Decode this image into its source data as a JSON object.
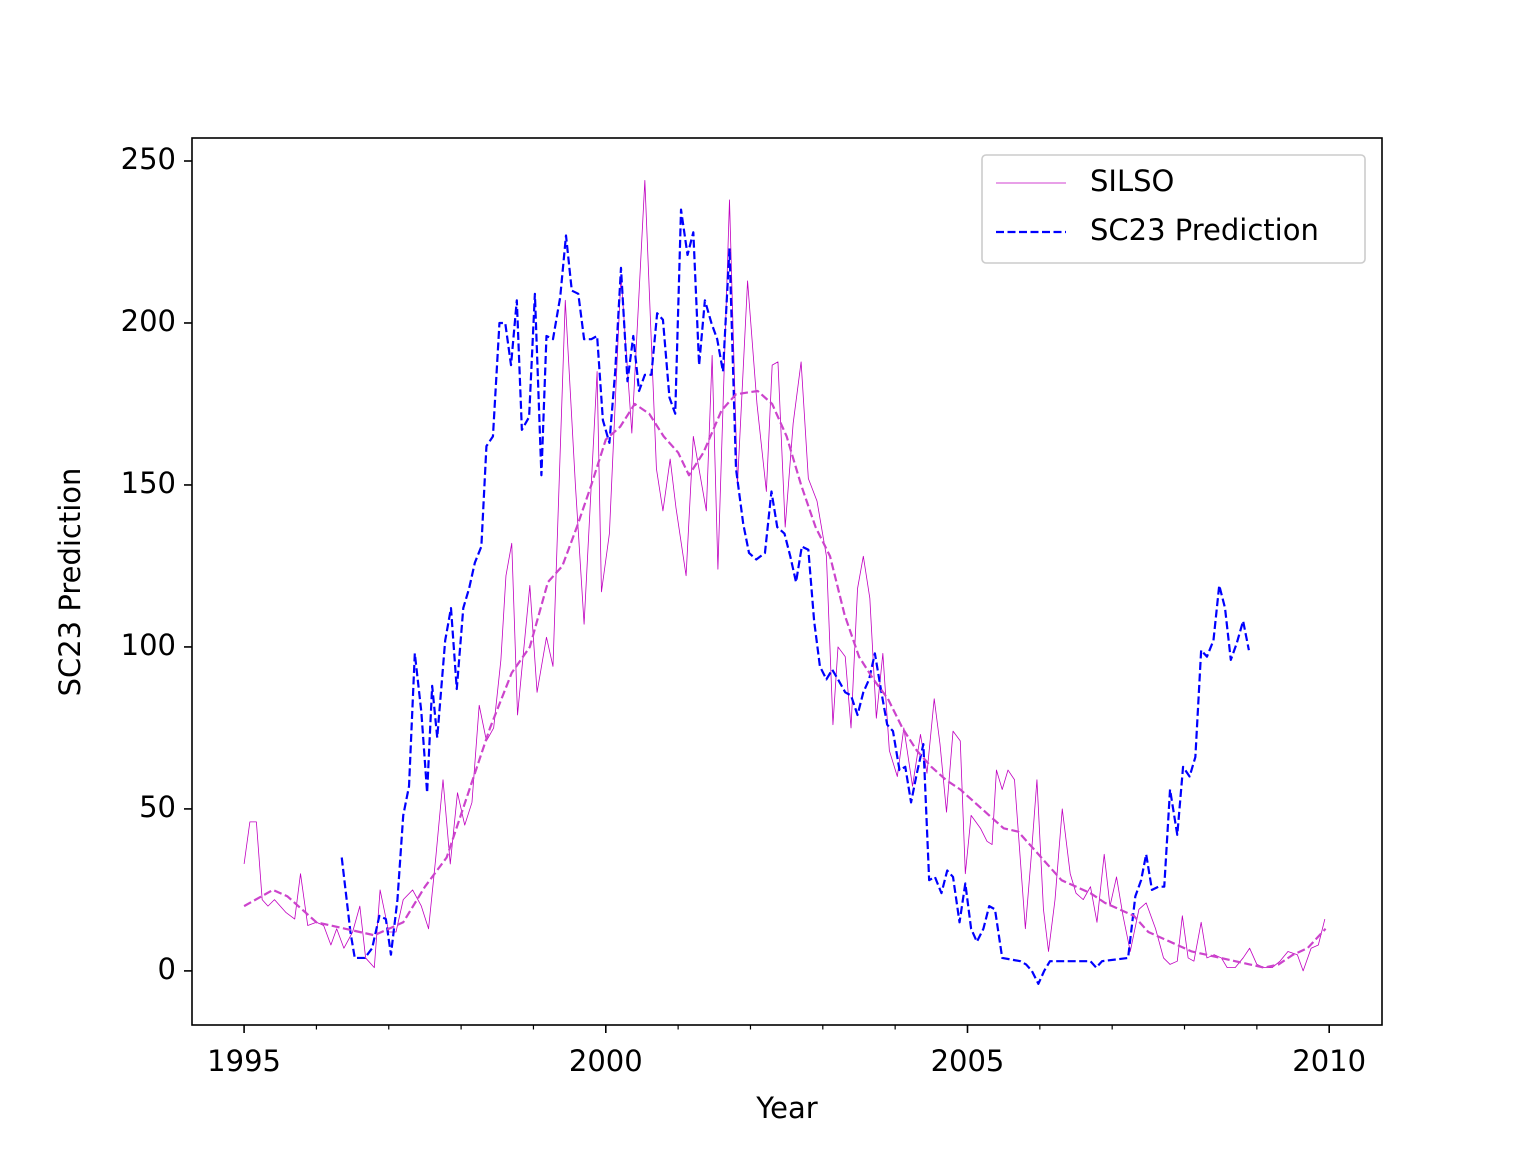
{
  "chart_data": {
    "type": "line",
    "xlabel": "Year",
    "ylabel": "SC23 Prediction",
    "xlim": [
      1994.28,
      2010.73
    ],
    "ylim": [
      -16.7,
      257.1
    ],
    "xticks": [
      1995,
      2000,
      2005,
      2010
    ],
    "xminorticks": [
      1996,
      1997,
      1998,
      1999,
      2001,
      2002,
      2003,
      2004,
      2006,
      2007,
      2008,
      2009
    ],
    "yticks": [
      0,
      50,
      100,
      150,
      200,
      250
    ],
    "legend": "upper right",
    "series": [
      {
        "name": "SILSO",
        "color": "#c000c0",
        "linestyle": "solid",
        "linewidth": 0.8,
        "x": [
          1995.0,
          1995.08,
          1995.17,
          1995.25,
          1995.33,
          1995.42,
          1995.58,
          1995.7,
          1995.78,
          1995.88,
          1996.0,
          1996.1,
          1996.2,
          1996.28,
          1996.38,
          1996.5,
          1996.6,
          1996.68,
          1996.8,
          1996.88,
          1997.0,
          1997.1,
          1997.2,
          1997.33,
          1997.45,
          1997.55,
          1997.65,
          1997.75,
          1997.85,
          1997.95,
          1998.05,
          1998.15,
          1998.25,
          1998.35,
          1998.45,
          1998.55,
          1998.62,
          1998.7,
          1998.78,
          1998.95,
          1999.05,
          1999.18,
          1999.27,
          1999.44,
          1999.58,
          1999.7,
          1999.88,
          1999.94,
          2000.05,
          2000.21,
          2000.36,
          2000.54,
          2000.7,
          2000.79,
          2000.89,
          2000.97,
          2001.11,
          2001.21,
          2001.39,
          2001.47,
          2001.55,
          2001.71,
          2001.82,
          2001.96,
          2002.09,
          2002.22,
          2002.3,
          2002.38,
          2002.48,
          2002.59,
          2002.7,
          2002.8,
          2002.92,
          2003.05,
          2003.14,
          2003.21,
          2003.31,
          2003.39,
          2003.48,
          2003.56,
          2003.65,
          2003.74,
          2003.83,
          2003.92,
          2004.03,
          2004.12,
          2004.24,
          2004.35,
          2004.44,
          2004.54,
          2004.62,
          2004.71,
          2004.8,
          2004.9,
          2004.97,
          2005.05,
          2005.18,
          2005.27,
          2005.34,
          2005.4,
          2005.48,
          2005.56,
          2005.65,
          2005.8,
          2005.88,
          2005.96,
          2006.05,
          2006.12,
          2006.21,
          2006.31,
          2006.42,
          2006.5,
          2006.6,
          2006.7,
          2006.79,
          2006.89,
          2006.97,
          2007.06,
          2007.15,
          2007.25,
          2007.37,
          2007.47,
          2007.6,
          2007.71,
          2007.8,
          2007.9,
          2007.97,
          2008.05,
          2008.13,
          2008.23,
          2008.31,
          2008.41,
          2008.51,
          2008.59,
          2008.7,
          2008.81,
          2008.9,
          2009.0,
          2009.1,
          2009.21,
          2009.32,
          2009.43,
          2009.56,
          2009.64,
          2009.75,
          2009.85,
          2009.94
        ],
        "values": [
          33,
          46,
          46,
          22,
          20,
          22,
          18,
          16,
          30,
          14,
          15,
          14,
          8,
          13,
          7,
          12,
          20,
          4,
          1,
          25,
          12,
          12,
          22,
          25,
          20,
          13,
          35,
          59,
          33,
          55,
          45,
          52,
          82,
          71,
          75,
          96,
          122,
          132,
          79,
          119,
          86,
          103,
          94,
          207,
          150,
          107,
          185,
          117,
          135,
          215,
          166,
          244,
          155,
          142,
          158,
          143,
          122,
          165,
          142,
          190,
          124,
          238,
          150,
          213,
          175,
          148,
          187,
          188,
          137,
          169,
          188,
          152,
          145,
          128,
          76,
          100,
          97,
          75,
          118,
          128,
          115,
          78,
          98,
          68,
          60,
          75,
          57,
          73,
          61,
          84,
          70,
          49,
          74,
          71,
          30,
          48,
          44,
          40,
          39,
          62,
          56,
          62,
          59,
          13,
          35,
          59,
          19,
          6,
          22,
          50,
          30,
          24,
          22,
          26,
          15,
          36,
          20,
          29,
          17,
          6,
          19,
          21,
          13,
          4,
          2,
          3,
          17,
          4,
          3,
          15,
          4,
          5,
          4,
          1,
          1,
          4,
          7,
          2,
          1,
          1,
          3,
          6,
          5,
          0,
          7,
          8,
          16
        ]
      },
      {
        "name": "SC23 Prediction",
        "color": "#0000ff",
        "linestyle": "dashed",
        "linewidth": 2.2,
        "x": [
          1996.35,
          1996.47,
          1996.53,
          1996.67,
          1996.77,
          1996.87,
          1996.96,
          1997.03,
          1997.12,
          1997.2,
          1997.28,
          1997.36,
          1997.45,
          1997.53,
          1997.6,
          1997.67,
          1997.78,
          1997.86,
          1997.94,
          1998.03,
          1998.11,
          1998.19,
          1998.28,
          1998.35,
          1998.44,
          1998.53,
          1998.61,
          1998.69,
          1998.77,
          1998.84,
          1998.94,
          1999.02,
          1999.11,
          1999.18,
          1999.27,
          1999.37,
          1999.45,
          1999.53,
          1999.62,
          1999.7,
          1999.8,
          1999.88,
          1999.96,
          2000.05,
          2000.13,
          2000.21,
          2000.3,
          2000.38,
          2000.46,
          2000.54,
          2000.63,
          2000.71,
          2000.79,
          2000.88,
          2000.96,
          2001.04,
          2001.13,
          2001.21,
          2001.29,
          2001.37,
          2001.46,
          2001.54,
          2001.62,
          2001.71,
          2001.8,
          2001.9,
          2001.98,
          2002.08,
          2002.2,
          2002.29,
          2002.37,
          2002.47,
          2002.55,
          2002.63,
          2002.71,
          2002.8,
          2002.88,
          2002.96,
          2003.05,
          2003.13,
          2003.21,
          2003.31,
          2003.39,
          2003.48,
          2003.56,
          2003.64,
          2003.72,
          2003.81,
          2003.89,
          2003.97,
          2004.06,
          2004.14,
          2004.22,
          2004.3,
          2004.39,
          2004.47,
          2004.55,
          2004.64,
          2004.72,
          2004.8,
          2004.89,
          2004.97,
          2005.05,
          2005.13,
          2005.22,
          2005.3,
          2005.38,
          2005.48,
          2005.73,
          2005.81,
          2005.89,
          2005.98,
          2006.06,
          2006.14,
          2006.7,
          2006.78,
          2006.86,
          2007.22,
          2007.32,
          2007.4,
          2007.47,
          2007.55,
          2007.64,
          2007.72,
          2007.8,
          2007.9,
          2007.98,
          2008.07,
          2008.15,
          2008.23,
          2008.31,
          2008.4,
          2008.48,
          2008.56,
          2008.64,
          2008.72,
          2008.81,
          2008.89
        ],
        "values": [
          35,
          12,
          4,
          4,
          7,
          17,
          16,
          5,
          22,
          48,
          57,
          98,
          80,
          55,
          88,
          72,
          102,
          112,
          87,
          112,
          118,
          126,
          131,
          162,
          165,
          200,
          200,
          187,
          207,
          167,
          171,
          209,
          153,
          196,
          195,
          208,
          227,
          210,
          209,
          195,
          195,
          196,
          170,
          163,
          185,
          217,
          182,
          196,
          179,
          184,
          184,
          203,
          201,
          177,
          172,
          235,
          221,
          228,
          187,
          207,
          200,
          195,
          185,
          223,
          155,
          138,
          129,
          127,
          129,
          148,
          137,
          135,
          128,
          120,
          131,
          130,
          108,
          94,
          90,
          93,
          90,
          86,
          85,
          79,
          86,
          90,
          98,
          86,
          76,
          74,
          62,
          63,
          52,
          61,
          70,
          28,
          29,
          24,
          31,
          29,
          15,
          27,
          13,
          9,
          13,
          20,
          19,
          4,
          3,
          2,
          0,
          -4,
          0,
          3,
          3,
          1,
          3,
          4,
          23,
          28,
          36,
          25,
          26,
          26,
          56,
          42,
          63,
          60,
          66,
          99,
          97,
          102,
          119,
          112,
          96,
          101,
          108,
          99
        ]
      },
      {
        "color": "#cc44cc",
        "linestyle": "dashed",
        "linewidth": 2.2,
        "x": [
          1995.0,
          1995.4,
          1995.6,
          1996.0,
          1996.4,
          1996.8,
          1997.2,
          1997.5,
          1997.8,
          1998.1,
          1998.4,
          1998.7,
          1998.95,
          1999.2,
          1999.4,
          1999.6,
          1999.8,
          2000.0,
          2000.2,
          2000.4,
          2000.6,
          2000.8,
          2001.0,
          2001.15,
          2001.35,
          2001.6,
          2001.8,
          2002.1,
          2002.3,
          2002.5,
          2002.7,
          2002.9,
          2003.1,
          2003.3,
          2003.5,
          2003.7,
          2003.9,
          2004.1,
          2004.3,
          2004.5,
          2004.7,
          2004.9,
          2005.1,
          2005.3,
          2005.5,
          2005.7,
          2005.9,
          2006.1,
          2006.3,
          2006.5,
          2006.7,
          2006.9,
          2007.1,
          2007.3,
          2007.5,
          2007.7,
          2007.9,
          2008.1,
          2008.3,
          2008.5,
          2008.7,
          2008.9,
          2009.1,
          2009.3,
          2009.5,
          2009.7,
          2009.95
        ],
        "values": [
          20,
          25,
          23,
          15,
          13,
          11,
          15,
          26,
          35,
          55,
          75,
          92,
          100,
          120,
          125,
          137,
          150,
          164,
          168,
          175,
          172,
          165,
          160,
          153,
          160,
          173,
          178,
          179,
          175,
          165,
          150,
          137,
          128,
          110,
          97,
          90,
          84,
          75,
          68,
          63,
          59,
          56,
          52,
          48,
          44,
          43,
          38,
          33,
          28,
          26,
          24,
          21,
          19,
          17,
          12,
          10,
          8,
          6,
          5,
          4,
          3,
          2,
          1,
          2,
          5,
          7,
          13
        ]
      }
    ]
  }
}
